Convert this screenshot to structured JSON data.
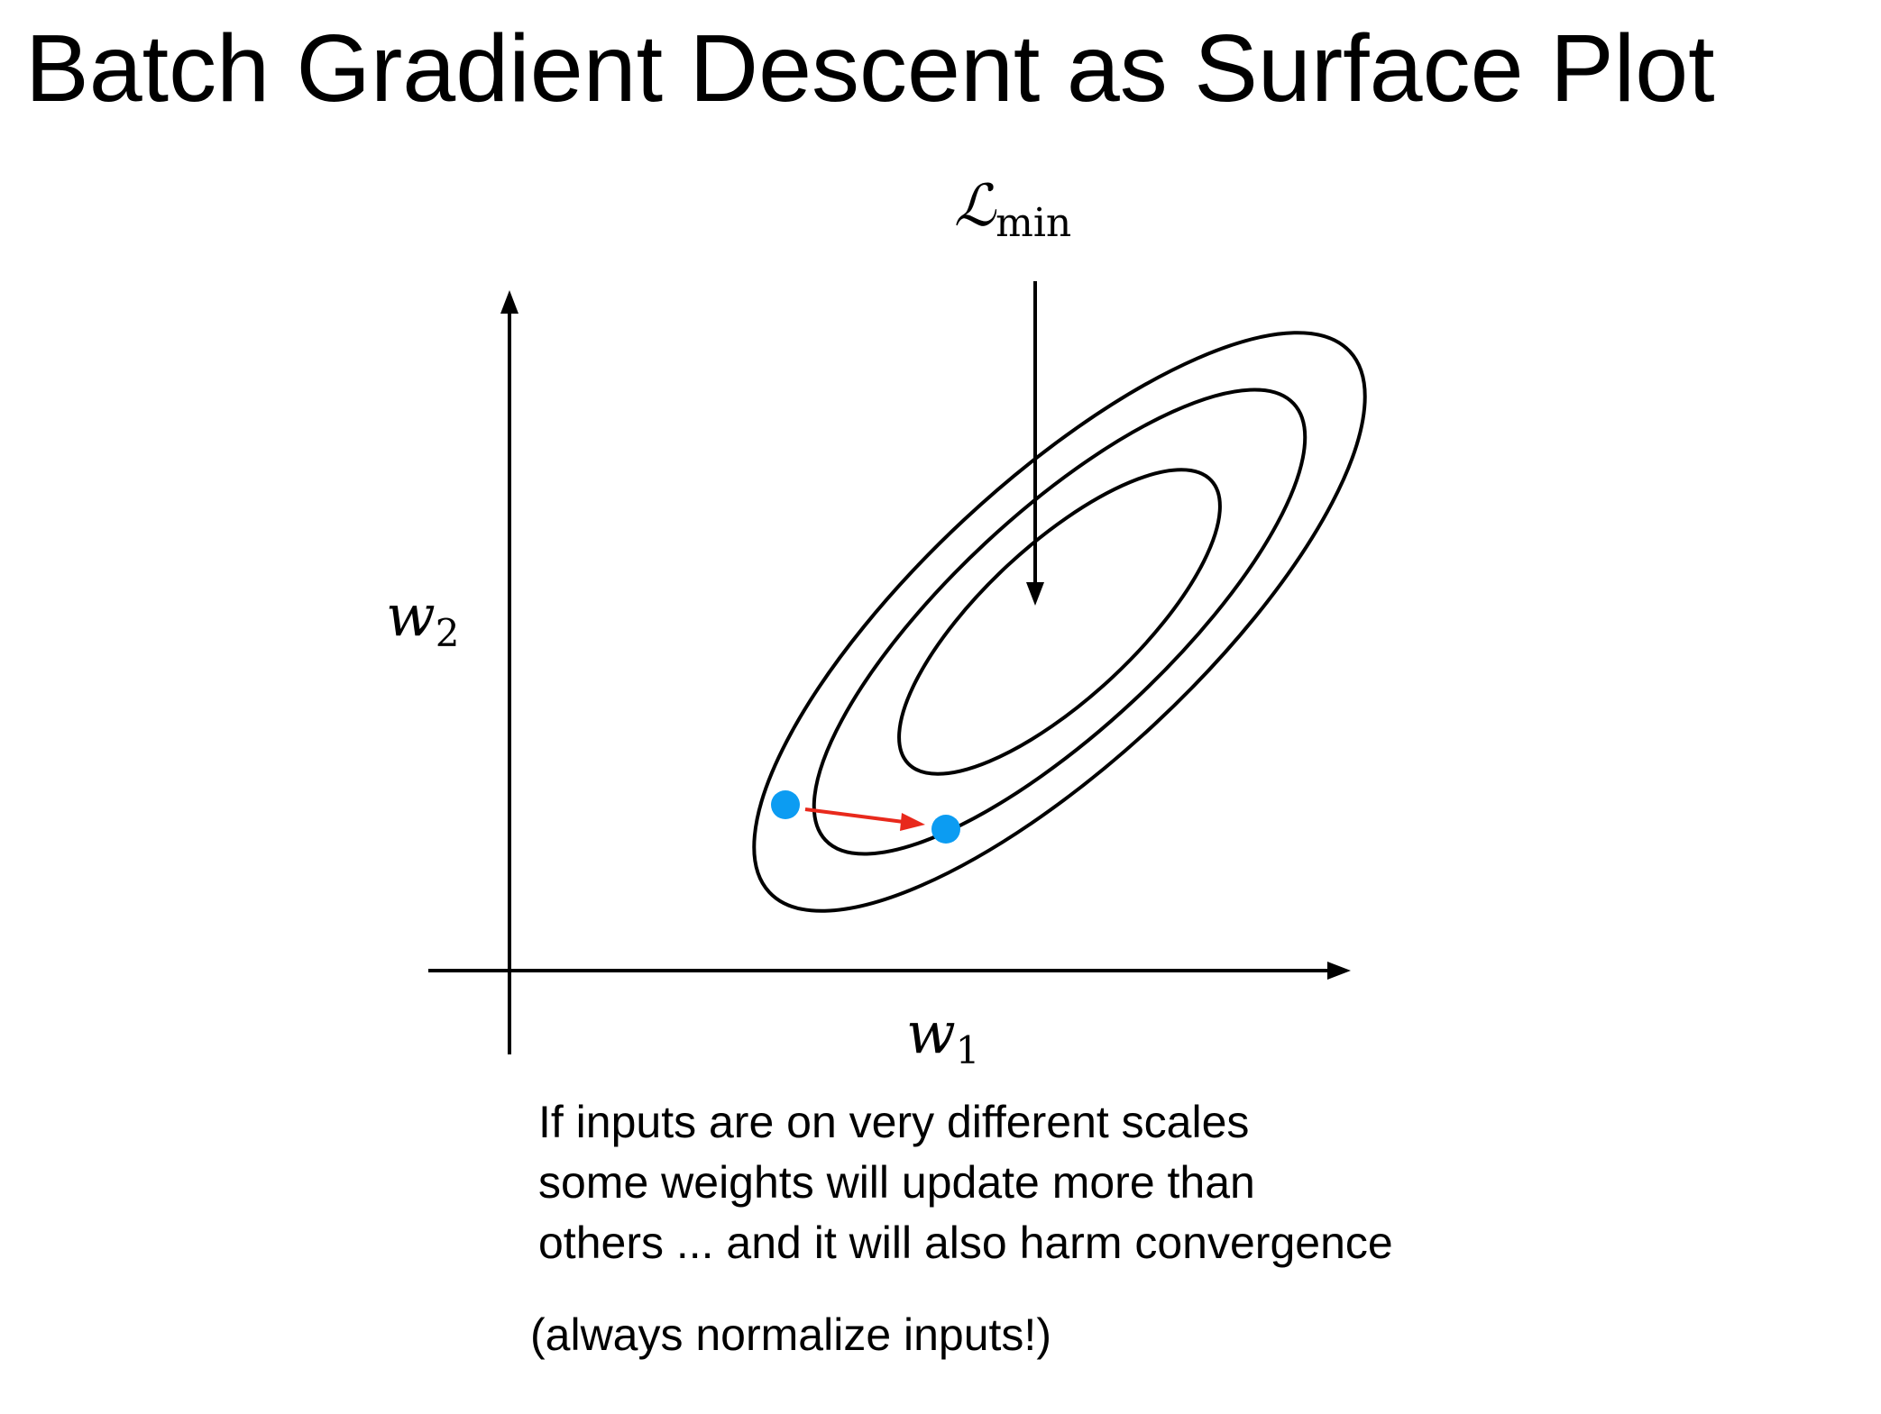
{
  "slide": {
    "title": "Batch Gradient Descent as Surface Plot"
  },
  "diagram": {
    "x_axis_label": "w",
    "x_axis_subscript": "1",
    "y_axis_label": "w",
    "y_axis_subscript": "2",
    "min_label": "ℒ",
    "min_label_subscript": "min",
    "contour_levels": 3,
    "colors": {
      "points": "#0c9cf2",
      "update_arrow": "#e8291c",
      "lines": "#000000"
    }
  },
  "caption": {
    "lines": [
      "If inputs are on very different scales",
      "some weights will update more than",
      "others ... and it will also harm convergence"
    ]
  },
  "note": "(always normalize inputs!)"
}
